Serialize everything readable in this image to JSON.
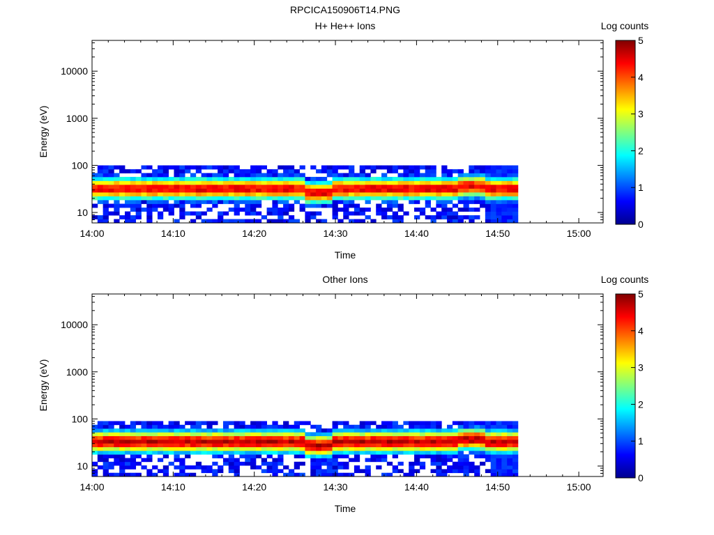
{
  "figure_title": "RPCICA150906T14.PNG",
  "colorbar": {
    "label": "Log counts",
    "ticks": [
      "0",
      "1",
      "2",
      "3",
      "4",
      "5"
    ],
    "min": 0,
    "max": 5
  },
  "chart_data": [
    {
      "type": "heatmap",
      "title": "H+ He++ Ions",
      "xlabel": "Time",
      "ylabel": "Energy (eV)",
      "x_ticks": [
        "14:00",
        "14:10",
        "14:20",
        "14:30",
        "14:40",
        "14:50",
        "15:00"
      ],
      "xlim_minutes": [
        0,
        63
      ],
      "y_ticks": [
        "10",
        "100",
        "1000",
        "10000"
      ],
      "y_scale": "log",
      "ylim": [
        6,
        45000
      ],
      "data_time_range_minutes": [
        0,
        52.5
      ],
      "energy_range_eV": [
        6,
        100
      ],
      "peak_energy_eV": 32,
      "peak_log_counts": 4.5,
      "colorbar_range": [
        0,
        5
      ]
    },
    {
      "type": "heatmap",
      "title": "Other Ions",
      "xlabel": "Time",
      "ylabel": "Energy (eV)",
      "x_ticks": [
        "14:00",
        "14:10",
        "14:20",
        "14:30",
        "14:40",
        "14:50",
        "15:00"
      ],
      "xlim_minutes": [
        0,
        63
      ],
      "y_ticks": [
        "10",
        "100",
        "1000",
        "10000"
      ],
      "y_scale": "log",
      "ylim": [
        6,
        45000
      ],
      "data_time_range_minutes": [
        0,
        52.5
      ],
      "energy_range_eV": [
        6,
        90
      ],
      "peak_energy_eV": 33,
      "peak_log_counts": 4.7,
      "colorbar_range": [
        0,
        5
      ]
    }
  ]
}
